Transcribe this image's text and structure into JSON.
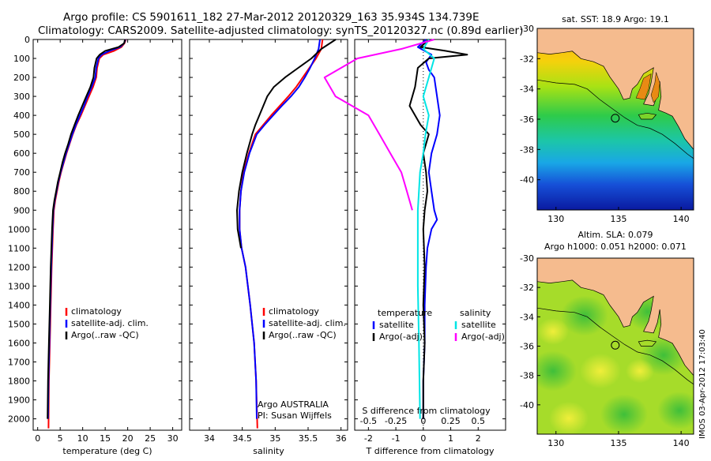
{
  "header": {
    "line1": "Argo profile: CS 5901611_182 27-Mar-2012 20120329_163 35.934S 134.739E",
    "line2": "Climatology: CARS2009. Satellite-adjusted climatology: synTS_20120327.nc (0.89d earlier)"
  },
  "colors": {
    "climatology": "#ff0000",
    "satellite": "#0000ff",
    "argo": "#000000",
    "salinity_satellite": "#00e5e5",
    "salinity_argo": "#ff00ff",
    "land": "#f5bb8e"
  },
  "chart_data": [
    {
      "id": "temperature",
      "type": "line",
      "xlabel": "temperature (deg C)",
      "ylabel": "",
      "xlim": [
        -1,
        32
      ],
      "ylim": [
        2060,
        0
      ],
      "xticks": [
        "0",
        "5",
        "10",
        "15",
        "20",
        "25",
        "30"
      ],
      "xtick_values": [
        0,
        5,
        10,
        15,
        20,
        25,
        30
      ],
      "yticks": [
        "0",
        "100",
        "200",
        "300",
        "400",
        "500",
        "600",
        "700",
        "800",
        "900",
        "1000",
        "1100",
        "1200",
        "1300",
        "1400",
        "1500",
        "1600",
        "1700",
        "1800",
        "1900",
        "2000"
      ],
      "ytick_values": [
        0,
        100,
        200,
        300,
        400,
        500,
        600,
        700,
        800,
        900,
        1000,
        1100,
        1200,
        1300,
        1400,
        1500,
        1600,
        1700,
        1800,
        1900,
        2000
      ],
      "legend": [
        "climatology",
        "satellite-adj. clim.",
        "Argo(..raw -QC)"
      ],
      "series": [
        {
          "name": "climatology",
          "color": "#ff0000",
          "x": [
            19.6,
            19.3,
            18.6,
            17.0,
            14.6,
            13.7,
            13.2,
            13.0,
            12.3,
            11.4,
            10.5,
            9.6,
            8.6,
            7.8,
            7.1,
            6.4,
            5.8,
            5.2,
            4.7,
            4.3,
            3.9,
            3.6,
            3.4,
            3.1,
            2.9,
            2.7,
            2.5,
            2.4
          ],
          "y": [
            0,
            20,
            40,
            60,
            80,
            100,
            150,
            200,
            250,
            300,
            350,
            400,
            450,
            500,
            550,
            600,
            650,
            700,
            750,
            800,
            850,
            900,
            1000,
            1200,
            1400,
            1600,
            1800,
            2050
          ]
        },
        {
          "name": "satellite-adj. clim.",
          "color": "#0000ff",
          "x": [
            19.5,
            19.2,
            18.3,
            16.0,
            14.2,
            13.5,
            13.0,
            12.8,
            12.0,
            11.1,
            10.3,
            9.4,
            8.5,
            7.7,
            7.0,
            6.3,
            5.7,
            5.1,
            4.6,
            4.2,
            3.8,
            3.5,
            3.3,
            3.0,
            2.8,
            2.6,
            2.4,
            2.3
          ],
          "y": [
            0,
            20,
            40,
            60,
            80,
            100,
            150,
            200,
            250,
            300,
            350,
            400,
            450,
            500,
            550,
            600,
            650,
            700,
            750,
            800,
            850,
            900,
            1000,
            1200,
            1400,
            1600,
            1800,
            2000
          ]
        },
        {
          "name": "Argo(..raw -QC)",
          "color": "#000000",
          "x": [
            19.4,
            19.2,
            18.0,
            15.0,
            13.8,
            13.1,
            12.6,
            12.4,
            11.7,
            10.8,
            9.9,
            9.0,
            8.2,
            7.4,
            6.8,
            6.1,
            5.5,
            5.0,
            4.5,
            4.1,
            3.7,
            3.4,
            3.2,
            2.9,
            2.7,
            2.5,
            2.3,
            2.2
          ],
          "y": [
            0,
            20,
            40,
            60,
            80,
            100,
            150,
            200,
            250,
            300,
            350,
            400,
            450,
            500,
            550,
            600,
            650,
            700,
            750,
            800,
            850,
            900,
            1000,
            1200,
            1400,
            1600,
            1800,
            2000
          ]
        }
      ]
    },
    {
      "id": "salinity",
      "type": "line",
      "xlabel": "salinity",
      "ylabel": "",
      "xlim": [
        33.7,
        36.1
      ],
      "ylim": [
        2060,
        0
      ],
      "xticks": [
        "34",
        "34.5",
        "35",
        "35.5",
        "36"
      ],
      "xtick_values": [
        34,
        34.5,
        35,
        35.5,
        36
      ],
      "legend": [
        "climatology",
        "satellite-adj. clim.",
        "Argo(..raw -QC)"
      ],
      "annotations": [
        "Argo AUSTRALIA",
        "PI: Susan Wijffels"
      ],
      "series": [
        {
          "name": "climatology",
          "color": "#ff0000",
          "x": [
            35.72,
            35.7,
            35.62,
            35.52,
            35.42,
            35.32,
            35.2,
            35.07,
            34.94,
            34.82,
            34.7,
            34.6,
            34.52,
            34.48,
            34.46,
            34.46,
            34.49,
            34.55,
            34.62,
            34.68,
            34.71,
            34.73
          ],
          "y": [
            0,
            50,
            100,
            150,
            200,
            250,
            300,
            350,
            400,
            450,
            500,
            600,
            700,
            800,
            900,
            1000,
            1100,
            1200,
            1400,
            1600,
            1800,
            2050
          ]
        },
        {
          "name": "satellite-adj. clim.",
          "color": "#0000ff",
          "x": [
            35.68,
            35.66,
            35.6,
            35.53,
            35.45,
            35.36,
            35.24,
            35.1,
            34.97,
            34.84,
            34.72,
            34.61,
            34.53,
            34.48,
            34.46,
            34.46,
            34.49,
            34.55,
            34.62,
            34.68,
            34.71,
            34.72
          ],
          "y": [
            0,
            50,
            100,
            150,
            200,
            250,
            300,
            350,
            400,
            450,
            500,
            600,
            700,
            800,
            900,
            1000,
            1100,
            1200,
            1400,
            1600,
            1800,
            2000
          ]
        },
        {
          "name": "Argo(..raw -QC)",
          "color": "#000000",
          "x": [
            35.92,
            35.7,
            35.55,
            35.35,
            35.15,
            34.98,
            34.88,
            34.82,
            34.76,
            34.7,
            34.65,
            34.57,
            34.5,
            34.45,
            34.42,
            34.43,
            34.48
          ],
          "y": [
            0,
            50,
            100,
            150,
            200,
            250,
            300,
            350,
            400,
            450,
            500,
            600,
            700,
            800,
            900,
            1000,
            1100
          ]
        }
      ]
    },
    {
      "id": "difference",
      "type": "line",
      "xlabel": "T difference from climatology",
      "xlabel_top": "S difference from climatology",
      "xlim": [
        -2.5,
        3.0
      ],
      "ylim": [
        2060,
        0
      ],
      "xticks": [
        "-2",
        "-1",
        "0",
        "1",
        "2"
      ],
      "xtick_values": [
        -2,
        -1,
        0,
        1,
        2
      ],
      "xticks_s": [
        "-0.5",
        "-0.25",
        "0",
        "0.25",
        "0.5"
      ],
      "xtick_s_values": [
        -0.5,
        -0.25,
        0,
        0.25,
        0.5
      ],
      "legend_groups": [
        {
          "heading": "temperature",
          "entries": [
            "satellite",
            "Argo(-adj)"
          ]
        },
        {
          "heading": "salinity",
          "entries": [
            "satellite",
            "Argo(-adj)"
          ]
        }
      ],
      "series": [
        {
          "name": "temperature satellite",
          "color": "#0000ff",
          "x": [
            0.1,
            -0.2,
            0.3,
            0.1,
            0.2,
            0.4,
            0.5,
            0.6,
            0.5,
            0.3,
            0.2,
            0.3,
            0.4,
            0.5,
            0.3,
            0.15,
            0.1,
            0.05,
            0.05,
            0.0,
            0.0
          ],
          "y": [
            0,
            40,
            80,
            120,
            160,
            200,
            300,
            400,
            500,
            600,
            700,
            800,
            900,
            950,
            1000,
            1100,
            1200,
            1400,
            1600,
            1800,
            2000
          ]
        },
        {
          "name": "temperature Argo(-adj)",
          "color": "#000000",
          "x": [
            0.2,
            -0.1,
            0.8,
            1.6,
            0.2,
            -0.2,
            -0.3,
            -0.5,
            -0.1,
            0.2,
            0.0,
            0.1,
            0.15,
            0.05,
            0.0,
            0.05,
            0.0,
            0.05,
            0.0,
            0.0
          ],
          "y": [
            0,
            40,
            60,
            80,
            100,
            150,
            250,
            350,
            450,
            500,
            600,
            700,
            800,
            900,
            1000,
            1200,
            1400,
            1600,
            1800,
            2000
          ]
        },
        {
          "name": "salinity satellite",
          "color": "#00e5e5",
          "x": [
            0.05,
            0.0,
            0.1,
            0.05,
            0.0,
            0.05,
            0.02,
            0.0,
            -0.03,
            -0.05,
            -0.05,
            -0.05,
            -0.04,
            -0.03
          ],
          "y": [
            0,
            50,
            100,
            200,
            300,
            400,
            500,
            600,
            700,
            900,
            1100,
            1300,
            1600,
            2000
          ]
        },
        {
          "name": "salinity Argo(-adj)",
          "color": "#ff00ff",
          "x": [
            0.1,
            -0.2,
            -0.6,
            -0.9,
            -0.8,
            -0.5,
            -0.4,
            -0.3,
            -0.2,
            -0.15,
            -0.1
          ],
          "y": [
            0,
            50,
            100,
            200,
            300,
            400,
            500,
            600,
            700,
            800,
            900
          ]
        }
      ]
    },
    {
      "id": "map_sst",
      "type": "heatmap",
      "title": "sat. SST: 18.9 Argo: 19.1",
      "xlim": [
        128.5,
        141.0
      ],
      "ylim": [
        -42.0,
        -30.0
      ],
      "xticks": [
        "130",
        "135",
        "140"
      ],
      "xtick_values": [
        130,
        135,
        140
      ],
      "yticks": [
        "-30",
        "-32",
        "-34",
        "-36",
        "-38",
        "-40"
      ],
      "ytick_values": [
        -30,
        -32,
        -34,
        -36,
        -38,
        -40
      ],
      "profile_position": {
        "lon": 134.739,
        "lat": -35.934
      }
    },
    {
      "id": "map_sla",
      "type": "heatmap",
      "title": "Altim. SLA: 0.079",
      "subtitle": "Argo h1000: 0.051 h2000: 0.071",
      "xlim": [
        128.5,
        141.0
      ],
      "ylim": [
        -42.0,
        -30.0
      ],
      "xticks": [
        "130",
        "135",
        "140"
      ],
      "xtick_values": [
        130,
        135,
        140
      ],
      "yticks": [
        "-30",
        "-32",
        "-34",
        "-36",
        "-38",
        "-40"
      ],
      "ytick_values": [
        -30,
        -32,
        -34,
        -36,
        -38,
        -40
      ],
      "profile_position": {
        "lon": 134.739,
        "lat": -35.934
      }
    }
  ],
  "footer": {
    "stamp": "IMOS 03-Apr-2012 17:03:40"
  }
}
